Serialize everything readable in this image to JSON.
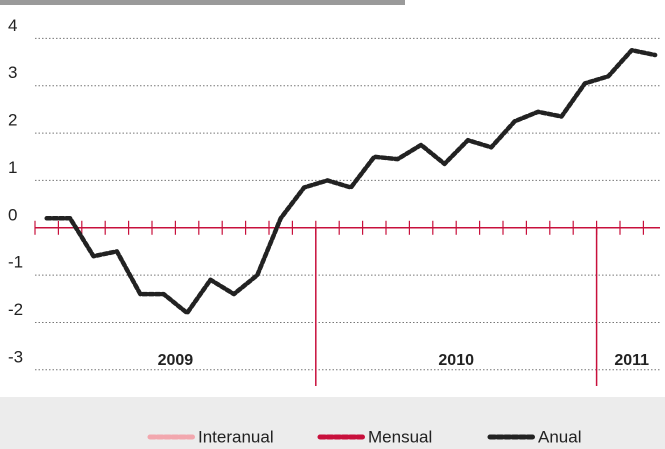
{
  "chart_data": {
    "type": "line",
    "categories": [
      null,
      null,
      null,
      null,
      null,
      null,
      null,
      null,
      null,
      null,
      null,
      null,
      null,
      null,
      null,
      null,
      null,
      null,
      null,
      null,
      null,
      null,
      null,
      null,
      null,
      null,
      null
    ],
    "groups": [
      {
        "label": "2009",
        "count": 12
      },
      {
        "label": "2010",
        "count": 12
      },
      {
        "label": "2011",
        "count": 3
      }
    ],
    "series": [
      {
        "name": "Interanual",
        "color": "#f2a7ae",
        "values": [
          null,
          null,
          null,
          null,
          null,
          null,
          null,
          null,
          null,
          null,
          null,
          null,
          null,
          null,
          null,
          null,
          null,
          null,
          null,
          null,
          null,
          null,
          null,
          null,
          null,
          null,
          null
        ]
      },
      {
        "name": "Mensual",
        "color": "#c8103c",
        "values": [
          null,
          null,
          null,
          null,
          null,
          null,
          null,
          null,
          null,
          null,
          null,
          null,
          null,
          null,
          null,
          null,
          null,
          null,
          null,
          null,
          null,
          null,
          null,
          null,
          null,
          null,
          null
        ]
      },
      {
        "name": "Anual",
        "color": "#222222",
        "values": [
          0.2,
          0.2,
          -0.6,
          -0.5,
          -1.4,
          -1.4,
          -1.8,
          -1.1,
          -1.4,
          -1.0,
          0.2,
          0.85,
          1.0,
          0.85,
          1.5,
          1.45,
          1.75,
          1.35,
          1.85,
          1.7,
          2.25,
          2.45,
          2.35,
          3.05,
          3.2,
          3.75,
          3.65
        ]
      }
    ],
    "ylim": [
      -3.3,
      4.6
    ],
    "yticks": [
      -3,
      -2,
      -1,
      0,
      1,
      2,
      3,
      4
    ],
    "grid": true
  }
}
